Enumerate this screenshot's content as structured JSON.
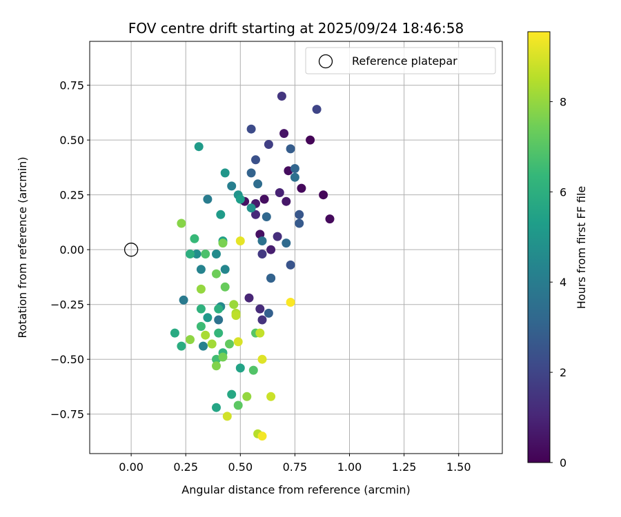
{
  "chart_data": {
    "type": "scatter",
    "title": "FOV centre drift starting at 2025/09/24 18:46:58",
    "xlabel": "Angular distance from reference (arcmin)",
    "ylabel": "Rotation from reference (arcmin)",
    "xlim": [
      -0.19,
      1.7
    ],
    "ylim": [
      -0.93,
      0.95
    ],
    "x_ticks": [
      0.0,
      0.25,
      0.5,
      0.75,
      1.0,
      1.25,
      1.5
    ],
    "x_tick_labels": [
      "0.00",
      "0.25",
      "0.50",
      "0.75",
      "1.00",
      "1.25",
      "1.50"
    ],
    "y_ticks": [
      -0.75,
      -0.5,
      -0.25,
      0.0,
      0.25,
      0.5,
      0.75
    ],
    "y_tick_labels": [
      "−0.75",
      "−0.50",
      "−0.25",
      "0.00",
      "0.25",
      "0.50",
      "0.75"
    ],
    "grid": true,
    "legend": {
      "position": "top-right",
      "entries": [
        "Reference platepar"
      ]
    },
    "reference_point": {
      "x": 0.0,
      "y": 0.0,
      "label": "Reference platepar"
    },
    "colorbar": {
      "label": "Hours from first FF file",
      "range": [
        0,
        9.55
      ],
      "ticks": [
        0,
        2,
        4,
        6,
        8
      ],
      "tick_labels": [
        "0",
        "2",
        "4",
        "6",
        "8"
      ],
      "colormap": [
        "#440154",
        "#482878",
        "#3e4989",
        "#31688e",
        "#26828e",
        "#1f9e89",
        "#35b779",
        "#6ece58",
        "#b5de2b",
        "#fde725"
      ]
    },
    "series": [
      {
        "name": "FOV centre drift",
        "points": [
          {
            "x": 0.82,
            "y": 0.5,
            "c": 0.1
          },
          {
            "x": 0.88,
            "y": 0.25,
            "c": 0.15
          },
          {
            "x": 0.78,
            "y": 0.28,
            "c": 0.2
          },
          {
            "x": 0.91,
            "y": 0.14,
            "c": 0.25
          },
          {
            "x": 0.72,
            "y": 0.36,
            "c": 0.3
          },
          {
            "x": 0.61,
            "y": 0.23,
            "c": 0.35
          },
          {
            "x": 0.59,
            "y": 0.07,
            "c": 0.4
          },
          {
            "x": 0.52,
            "y": 0.22,
            "c": 0.45
          },
          {
            "x": 0.7,
            "y": 0.53,
            "c": 0.5
          },
          {
            "x": 0.71,
            "y": 0.22,
            "c": 0.6
          },
          {
            "x": 0.57,
            "y": 0.21,
            "c": 0.7
          },
          {
            "x": 0.64,
            "y": 0.0,
            "c": 0.8
          },
          {
            "x": 0.68,
            "y": 0.26,
            "c": 0.9
          },
          {
            "x": 0.54,
            "y": -0.22,
            "c": 1.0
          },
          {
            "x": 0.57,
            "y": 0.16,
            "c": 1.1
          },
          {
            "x": 0.59,
            "y": -0.27,
            "c": 1.2
          },
          {
            "x": 0.67,
            "y": 0.06,
            "c": 1.3
          },
          {
            "x": 0.6,
            "y": -0.32,
            "c": 1.4
          },
          {
            "x": 0.69,
            "y": 0.7,
            "c": 1.5
          },
          {
            "x": 0.6,
            "y": -0.02,
            "c": 1.6
          },
          {
            "x": 0.63,
            "y": 0.48,
            "c": 1.8
          },
          {
            "x": 0.85,
            "y": 0.64,
            "c": 2.0
          },
          {
            "x": 0.55,
            "y": 0.55,
            "c": 2.2
          },
          {
            "x": 0.57,
            "y": 0.41,
            "c": 2.4
          },
          {
            "x": 0.64,
            "y": -0.13,
            "c": 2.5
          },
          {
            "x": 0.73,
            "y": -0.07,
            "c": 2.5
          },
          {
            "x": 0.77,
            "y": 0.16,
            "c": 2.6
          },
          {
            "x": 0.77,
            "y": 0.12,
            "c": 2.7
          },
          {
            "x": 0.73,
            "y": 0.46,
            "c": 2.8
          },
          {
            "x": 0.63,
            "y": -0.29,
            "c": 2.9
          },
          {
            "x": 0.64,
            "y": -0.13,
            "c": 3.0
          },
          {
            "x": 0.55,
            "y": 0.35,
            "c": 3.0
          },
          {
            "x": 0.75,
            "y": 0.37,
            "c": 3.1
          },
          {
            "x": 0.62,
            "y": 0.15,
            "c": 3.2
          },
          {
            "x": 0.71,
            "y": 0.03,
            "c": 3.3
          },
          {
            "x": 0.58,
            "y": 0.3,
            "c": 3.4
          },
          {
            "x": 0.75,
            "y": 0.33,
            "c": 3.5
          },
          {
            "x": 0.6,
            "y": 0.04,
            "c": 3.6
          },
          {
            "x": 0.4,
            "y": -0.32,
            "c": 3.6
          },
          {
            "x": 0.24,
            "y": -0.23,
            "c": 3.9
          },
          {
            "x": 0.35,
            "y": 0.23,
            "c": 4.0
          },
          {
            "x": 0.46,
            "y": 0.29,
            "c": 4.1
          },
          {
            "x": 0.33,
            "y": -0.44,
            "c": 4.2
          },
          {
            "x": 0.32,
            "y": -0.09,
            "c": 4.3
          },
          {
            "x": 0.43,
            "y": -0.09,
            "c": 4.4
          },
          {
            "x": 0.41,
            "y": -0.26,
            "c": 4.5
          },
          {
            "x": 0.39,
            "y": -0.02,
            "c": 4.6
          },
          {
            "x": 0.3,
            "y": -0.02,
            "c": 4.7
          },
          {
            "x": 0.55,
            "y": 0.19,
            "c": 4.8
          },
          {
            "x": 0.49,
            "y": 0.25,
            "c": 4.9
          },
          {
            "x": 0.43,
            "y": 0.35,
            "c": 5.0
          },
          {
            "x": 0.35,
            "y": -0.31,
            "c": 5.1
          },
          {
            "x": 0.31,
            "y": 0.47,
            "c": 5.2
          },
          {
            "x": 0.41,
            "y": 0.16,
            "c": 5.2
          },
          {
            "x": 0.5,
            "y": 0.23,
            "c": 5.3
          },
          {
            "x": 0.42,
            "y": 0.04,
            "c": 5.4
          },
          {
            "x": 0.5,
            "y": -0.54,
            "c": 5.5
          },
          {
            "x": 0.39,
            "y": -0.72,
            "c": 5.6
          },
          {
            "x": 0.46,
            "y": -0.66,
            "c": 5.7
          },
          {
            "x": 0.2,
            "y": -0.38,
            "c": 5.8
          },
          {
            "x": 0.23,
            "y": -0.44,
            "c": 5.9
          },
          {
            "x": 0.27,
            "y": -0.02,
            "c": 6.0
          },
          {
            "x": 0.4,
            "y": -0.27,
            "c": 6.0
          },
          {
            "x": 0.32,
            "y": -0.27,
            "c": 6.1
          },
          {
            "x": 0.42,
            "y": -0.47,
            "c": 6.2
          },
          {
            "x": 0.4,
            "y": -0.38,
            "c": 6.3
          },
          {
            "x": 0.29,
            "y": 0.05,
            "c": 6.4
          },
          {
            "x": 0.32,
            "y": -0.35,
            "c": 6.5
          },
          {
            "x": 0.39,
            "y": -0.5,
            "c": 6.6
          },
          {
            "x": 0.34,
            "y": -0.02,
            "c": 6.8
          },
          {
            "x": 0.56,
            "y": -0.55,
            "c": 6.9
          },
          {
            "x": 0.57,
            "y": -0.38,
            "c": 7.0
          },
          {
            "x": 0.49,
            "y": -0.71,
            "c": 7.1
          },
          {
            "x": 0.45,
            "y": -0.43,
            "c": 7.2
          },
          {
            "x": 0.43,
            "y": -0.17,
            "c": 7.3
          },
          {
            "x": 0.39,
            "y": -0.11,
            "c": 7.4
          },
          {
            "x": 0.42,
            "y": -0.49,
            "c": 7.5
          },
          {
            "x": 0.42,
            "y": 0.03,
            "c": 7.6
          },
          {
            "x": 0.39,
            "y": -0.53,
            "c": 7.7
          },
          {
            "x": 0.23,
            "y": 0.12,
            "c": 7.8
          },
          {
            "x": 0.27,
            "y": -0.41,
            "c": 7.9
          },
          {
            "x": 0.53,
            "y": -0.67,
            "c": 8.0
          },
          {
            "x": 0.32,
            "y": -0.18,
            "c": 8.0
          },
          {
            "x": 0.47,
            "y": -0.25,
            "c": 8.1
          },
          {
            "x": 0.37,
            "y": -0.43,
            "c": 8.2
          },
          {
            "x": 0.34,
            "y": -0.39,
            "c": 8.3
          },
          {
            "x": 0.48,
            "y": -0.29,
            "c": 8.4
          },
          {
            "x": 0.58,
            "y": -0.84,
            "c": 8.5
          },
          {
            "x": 0.48,
            "y": -0.3,
            "c": 8.6
          },
          {
            "x": 0.59,
            "y": -0.38,
            "c": 8.7
          },
          {
            "x": 0.64,
            "y": -0.67,
            "c": 8.8
          },
          {
            "x": 0.44,
            "y": -0.76,
            "c": 8.9
          },
          {
            "x": 0.49,
            "y": -0.42,
            "c": 9.0
          },
          {
            "x": 0.6,
            "y": -0.5,
            "c": 9.1
          },
          {
            "x": 0.5,
            "y": 0.04,
            "c": 9.2
          },
          {
            "x": 0.6,
            "y": -0.85,
            "c": 9.4
          },
          {
            "x": 0.73,
            "y": -0.24,
            "c": 9.5
          }
        ]
      }
    ]
  }
}
